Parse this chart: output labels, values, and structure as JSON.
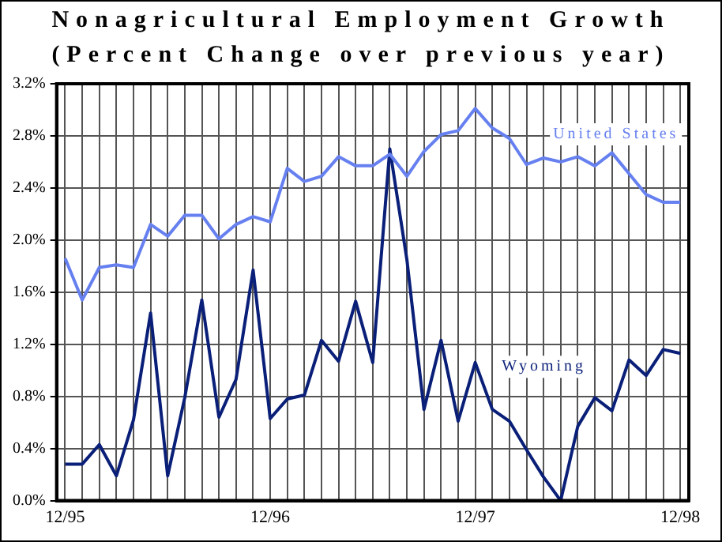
{
  "chart_data": {
    "type": "line",
    "title": "Nonagricultural Employment Growth",
    "subtitle": "(Percent Change over previous year)",
    "categories": [
      "12/95",
      null,
      null,
      null,
      null,
      null,
      null,
      null,
      null,
      null,
      null,
      null,
      "12/96",
      null,
      null,
      null,
      null,
      null,
      null,
      null,
      null,
      null,
      null,
      null,
      "12/97",
      null,
      null,
      null,
      null,
      null,
      null,
      null,
      null,
      null,
      null,
      null,
      "12/98"
    ],
    "series": [
      {
        "name": "United States",
        "color": "#6680f0",
        "values": [
          1.86,
          1.54,
          1.79,
          1.81,
          1.79,
          2.12,
          2.03,
          2.19,
          2.19,
          2.01,
          2.12,
          2.18,
          2.14,
          2.55,
          2.45,
          2.49,
          2.64,
          2.57,
          2.57,
          2.66,
          2.49,
          2.68,
          2.81,
          2.84,
          3.01,
          2.86,
          2.78,
          2.58,
          2.63,
          2.6,
          2.64,
          2.57,
          2.67,
          2.51,
          2.35,
          2.29,
          2.29
        ]
      },
      {
        "name": "Wyoming",
        "color": "#0a1f78",
        "values": [
          0.28,
          0.28,
          0.43,
          0.19,
          0.62,
          1.44,
          0.19,
          0.79,
          1.54,
          0.64,
          0.93,
          1.77,
          0.63,
          0.78,
          0.81,
          1.23,
          1.07,
          1.53,
          1.06,
          2.7,
          1.85,
          0.7,
          1.23,
          0.61,
          1.06,
          0.7,
          0.61,
          0.39,
          0.18,
          0.0,
          0.57,
          0.79,
          0.69,
          1.08,
          0.96,
          1.16,
          1.13
        ]
      }
    ],
    "ylim": [
      0,
      3.2
    ],
    "yticks": [
      {
        "value": 0,
        "label": "0.0%"
      },
      {
        "value": 0.4,
        "label": "0.4%"
      },
      {
        "value": 0.8,
        "label": "0.8%"
      },
      {
        "value": 1.2,
        "label": "1.2%"
      },
      {
        "value": 1.6,
        "label": "1.6%"
      },
      {
        "value": 2.0,
        "label": "2.0%"
      },
      {
        "value": 2.4,
        "label": "2.4%"
      },
      {
        "value": 2.8,
        "label": "2.8%"
      },
      {
        "value": 3.2,
        "label": "3.2%"
      }
    ],
    "grid": true,
    "legend": false,
    "marker": "none",
    "line_style": "solid"
  }
}
